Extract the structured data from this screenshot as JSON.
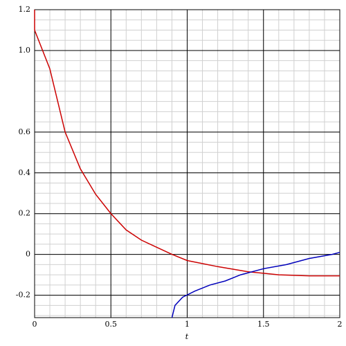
{
  "chart_data": {
    "type": "line",
    "x_label": "t",
    "xlim": [
      0,
      2
    ],
    "ylim": [
      -0.31,
      1.2
    ],
    "xticks": [
      0,
      0.5,
      1,
      1.5,
      2
    ],
    "yticks": [
      -0.2,
      0,
      0.2,
      0.4,
      0.6,
      {
        "value": 1,
        "label": "1.0"
      },
      1.2
    ],
    "x_minor_step": 0.1,
    "y_minor_step": 0.05,
    "grid": true,
    "series": [
      {
        "color": "#cc0000",
        "x": [
          0,
          0,
          0.1,
          0.2,
          0.3,
          0.4,
          0.5,
          0.6,
          0.7,
          0.8,
          0.9,
          1.0,
          1.2,
          1.4,
          1.6,
          1.8,
          2.0
        ],
        "values": [
          1.2,
          1.1,
          0.91,
          0.6,
          0.42,
          0.295,
          0.2,
          0.12,
          0.07,
          0.035,
          0.0,
          -0.03,
          -0.06,
          -0.085,
          -0.1,
          -0.105,
          -0.105
        ]
      },
      {
        "color": "#0000bb",
        "x": [
          0.9,
          0.92,
          0.97,
          1.05,
          1.15,
          1.25,
          1.35,
          1.5,
          1.65,
          1.8,
          1.95,
          2.0
        ],
        "values": [
          -0.31,
          -0.25,
          -0.21,
          -0.18,
          -0.15,
          -0.13,
          -0.1,
          -0.07,
          -0.05,
          -0.02,
          0.0,
          0.01
        ]
      }
    ]
  }
}
